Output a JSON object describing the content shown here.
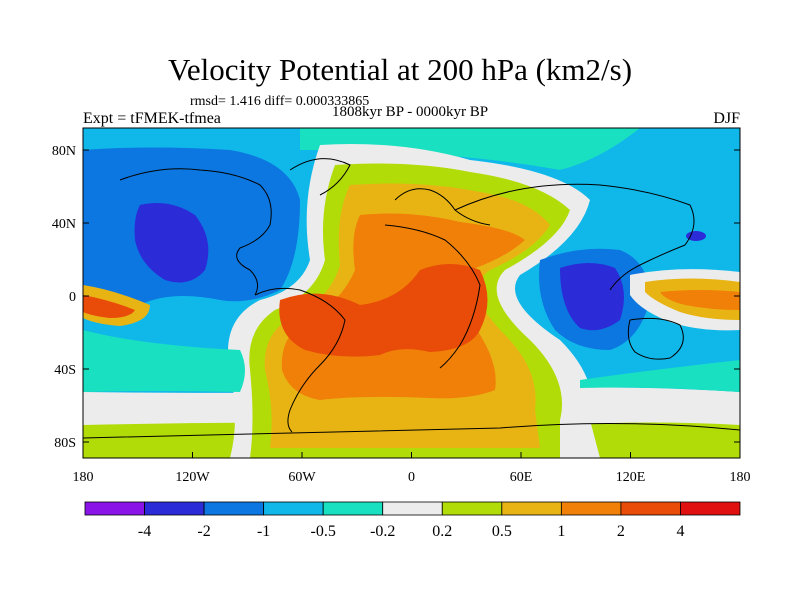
{
  "title": "Velocity Potential at 200 hPa (km2/s)",
  "stats": "rmsd= 1.416 diff= 0.000333865",
  "period": "1808kyr BP - 0000kyr BP",
  "experiment": "Expt = tFMEK-tfmea",
  "season": "DJF",
  "lat_ticks": [
    "80N",
    "40N",
    "0",
    "40S",
    "80S"
  ],
  "lon_ticks": [
    "180",
    "120W",
    "60W",
    "0",
    "60E",
    "120E",
    "180"
  ],
  "colorbar": {
    "colors": [
      "#8a14e8",
      "#2b2bd8",
      "#0c77e0",
      "#10b8ea",
      "#18e0c0",
      "#ececec",
      "#b2dc08",
      "#e8b414",
      "#f08008",
      "#e84c08",
      "#e01010"
    ],
    "labels": [
      "-4",
      "-2",
      "-1",
      "-0.5",
      "-0.2",
      "0.2",
      "0.5",
      "1",
      "2",
      "4"
    ]
  }
}
